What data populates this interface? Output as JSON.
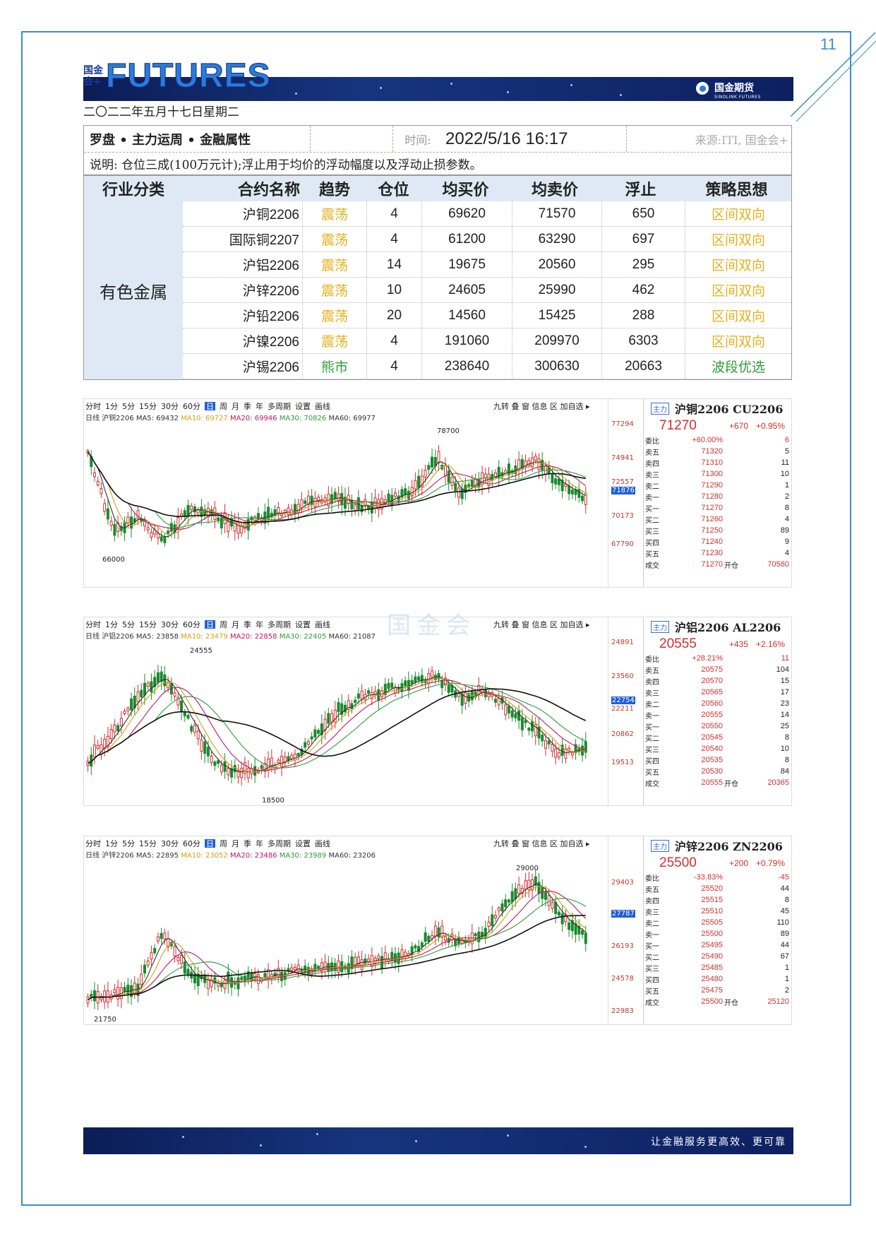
{
  "page_number": "11",
  "brand": {
    "small": "国金\n会+",
    "big": "FUTURES",
    "right_cn": "国金期货",
    "right_en": "SINOLINK FUTURES"
  },
  "date": "二〇二二年五月十七日星期二",
  "table": {
    "title": "罗盘 • 主力运周 • 金融属性",
    "time_label": "时间:",
    "time_value": "2022/5/16 16:17",
    "source": "来源:ITI, 国金会+",
    "note": "说明: 仓位三成(100万元计);浮止用于均价的浮动幅度以及浮动止损参数。",
    "headers": [
      "行业分类",
      "合约名称",
      "趋势",
      "仓位",
      "均买价",
      "均卖价",
      "浮止",
      "策略思想"
    ],
    "category": "有色金属",
    "rows": [
      {
        "name": "沪铜2206",
        "trend": "震荡",
        "pos": "4",
        "buy": "69620",
        "sell": "71570",
        "stop": "650",
        "strat": "区间双向"
      },
      {
        "name": "国际铜2207",
        "trend": "震荡",
        "pos": "4",
        "buy": "61200",
        "sell": "63290",
        "stop": "697",
        "strat": "区间双向"
      },
      {
        "name": "沪铝2206",
        "trend": "震荡",
        "pos": "14",
        "buy": "19675",
        "sell": "20560",
        "stop": "295",
        "strat": "区间双向"
      },
      {
        "name": "沪锌2206",
        "trend": "震荡",
        "pos": "10",
        "buy": "24605",
        "sell": "25990",
        "stop": "462",
        "strat": "区间双向"
      },
      {
        "name": "沪铅2206",
        "trend": "震荡",
        "pos": "20",
        "buy": "14560",
        "sell": "15425",
        "stop": "288",
        "strat": "区间双向"
      },
      {
        "name": "沪镍2206",
        "trend": "震荡",
        "pos": "4",
        "buy": "191060",
        "sell": "209970",
        "stop": "6303",
        "strat": "区间双向"
      },
      {
        "name": "沪锡2206",
        "trend": "熊市",
        "pos": "4",
        "buy": "238640",
        "sell": "300630",
        "stop": "20663",
        "strat": "波段优选"
      }
    ]
  },
  "toolbar": [
    "分时",
    "1分",
    "5分",
    "15分",
    "30分",
    "60分",
    "日",
    "周",
    "月",
    "季",
    "年",
    "多周期",
    "设置",
    "画线"
  ],
  "toolbar_right": "九转 叠 窗 信息 区 加自选 ▸",
  "watermark": "国金会",
  "charts": [
    {
      "ma": {
        "prefix": "日线 沪铜2206",
        "ma5": "MA5: 69432",
        "ma10": "MA10: 69727",
        "ma20": "MA20: 69946",
        "ma30": "MA30: 70826",
        "ma60": "MA60: 69977"
      },
      "high_label": "78700",
      "low_label": "66000",
      "axis": [
        "77294",
        "74941",
        "72557",
        "71876",
        "70173",
        "67790"
      ],
      "title": "沪铜2206 CU2206",
      "tag": "主力",
      "price": "71270",
      "change": "+670",
      "pct": "+0.95%",
      "ratio": {
        "label": "委比",
        "v": "+60.00%",
        "n": "6"
      },
      "book": [
        [
          "卖五",
          "71320",
          "5"
        ],
        [
          "卖四",
          "71310",
          "11"
        ],
        [
          "卖三",
          "71300",
          "10"
        ],
        [
          "卖二",
          "71290",
          "1"
        ],
        [
          "卖一",
          "71280",
          "2"
        ],
        [
          "买一",
          "71270",
          "8"
        ],
        [
          "买二",
          "71260",
          "4"
        ],
        [
          "买三",
          "71250",
          "89"
        ],
        [
          "买四",
          "71240",
          "9"
        ],
        [
          "买五",
          "71230",
          "4"
        ]
      ],
      "deal": {
        "label": "成交",
        "v": "71270",
        "open": "开仓",
        "n": "70580"
      }
    },
    {
      "ma": {
        "prefix": "日线 沪铝2206",
        "ma5": "MA5: 23858",
        "ma10": "MA10: 23479",
        "ma20": "MA20: 22858",
        "ma30": "MA30: 22405",
        "ma60": "MA60: 21087"
      },
      "high_label": "24555",
      "low_label": "18500",
      "axis": [
        "24891",
        "23560",
        "22754",
        "22211",
        "20862",
        "19513"
      ],
      "title": "沪铝2206 AL2206",
      "tag": "主力",
      "price": "20555",
      "change": "+435",
      "pct": "+2.16%",
      "ratio": {
        "label": "委比",
        "v": "+28.21%",
        "n": "11"
      },
      "book": [
        [
          "卖五",
          "20575",
          "104"
        ],
        [
          "卖四",
          "20570",
          "15"
        ],
        [
          "卖三",
          "20565",
          "17"
        ],
        [
          "卖二",
          "20560",
          "23"
        ],
        [
          "卖一",
          "20555",
          "14"
        ],
        [
          "买一",
          "20550",
          "25"
        ],
        [
          "买二",
          "20545",
          "8"
        ],
        [
          "买三",
          "20540",
          "10"
        ],
        [
          "买四",
          "20535",
          "8"
        ],
        [
          "买五",
          "20530",
          "84"
        ]
      ],
      "deal": {
        "label": "成交",
        "v": "20555",
        "open": "开仓",
        "n": "20365"
      }
    },
    {
      "ma": {
        "prefix": "日线 沪锌2206",
        "ma5": "MA5: 22895",
        "ma10": "MA10: 23052",
        "ma20": "MA20: 23486",
        "ma30": "MA30: 23989",
        "ma60": "MA60: 23206"
      },
      "high_label": "29000",
      "low_label": "21750",
      "axis": [
        "29403",
        "27787",
        "26193",
        "24578",
        "22983"
      ],
      "title": "沪锌2206 ZN2206",
      "tag": "主力",
      "price": "25500",
      "change": "+200",
      "pct": "+0.79%",
      "ratio": {
        "label": "委比",
        "v": "-33.83%",
        "n": "-45"
      },
      "book": [
        [
          "卖五",
          "25520",
          "44"
        ],
        [
          "卖四",
          "25515",
          "8"
        ],
        [
          "卖三",
          "25510",
          "45"
        ],
        [
          "卖二",
          "25505",
          "110"
        ],
        [
          "卖一",
          "25500",
          "89"
        ],
        [
          "买一",
          "25495",
          "44"
        ],
        [
          "买二",
          "25490",
          "67"
        ],
        [
          "买三",
          "25485",
          "1"
        ],
        [
          "买四",
          "25480",
          "1"
        ],
        [
          "买五",
          "25475",
          "2"
        ]
      ],
      "deal": {
        "label": "成交",
        "v": "25500",
        "open": "开仓",
        "n": "25120"
      }
    }
  ],
  "footer_slogan": "让金融服务更高效、更可靠"
}
